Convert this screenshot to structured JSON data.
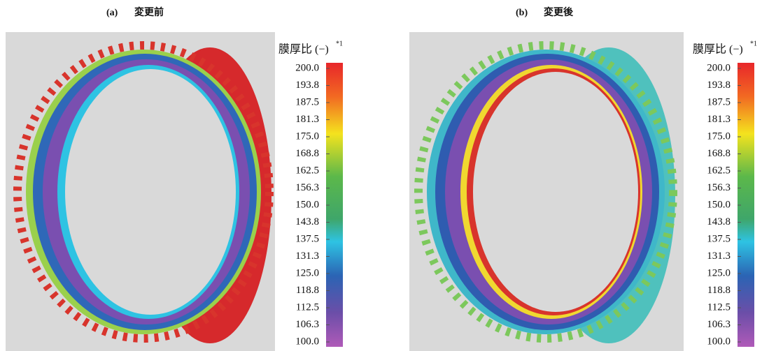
{
  "panels": [
    {
      "label": "(a)",
      "title": "変更前",
      "colorbar": {
        "title": "膜厚比 (−)",
        "note": "*1",
        "ticks": [
          "200.0",
          "193.8",
          "187.5",
          "181.3",
          "175.0",
          "168.8",
          "162.5",
          "156.3",
          "150.0",
          "143.8",
          "137.5",
          "131.3",
          "125.0",
          "118.8",
          "112.5",
          "106.3",
          "100.0"
        ]
      }
    },
    {
      "label": "(b)",
      "title": "変更後",
      "colorbar": {
        "title": "膜厚比 (−)",
        "note": "*1",
        "ticks": [
          "200.0",
          "193.8",
          "187.5",
          "181.3",
          "175.0",
          "168.8",
          "162.5",
          "156.3",
          "150.0",
          "143.8",
          "137.5",
          "131.3",
          "125.0",
          "118.8",
          "112.5",
          "106.3",
          "100.0"
        ]
      }
    }
  ]
}
